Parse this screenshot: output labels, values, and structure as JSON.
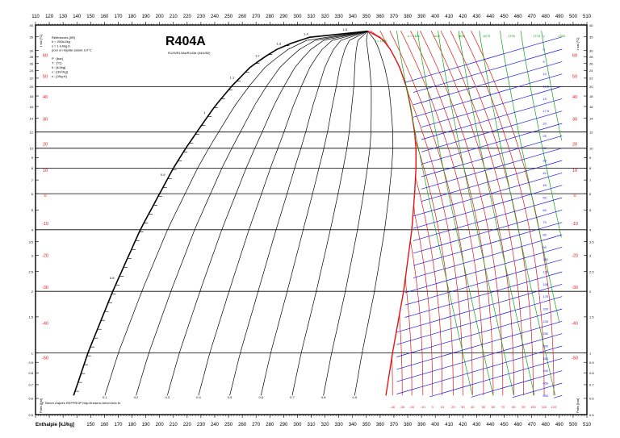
{
  "chart_data": {
    "type": "pressure-enthalpy diagram",
    "title": "R404A",
    "subtitle": "R125/R134a/R143a (44/4/52)",
    "reference_notes": [
      "Références (IIR)",
      "h = 200kJ/kg",
      "s = 1 kJ/kg.K",
      "pour un liquide saturé à 0°C"
    ],
    "legend": [
      "P : [bar]",
      "T : [°C]",
      "h : [kJ/kg]",
      "v : [dm³/kg]",
      "s : [J/kg.K]"
    ],
    "xlabel": "Enthalpie [kJ/kg]",
    "ylabel_left": "Pabs [bar]",
    "ylabel_right": "Pabs [bar]",
    "ylabel_top_left": "t sat [°C]",
    "ylabel_top_right": "t sat [°C]",
    "x_ticks": [
      110,
      120,
      130,
      140,
      150,
      160,
      170,
      180,
      190,
      200,
      210,
      220,
      230,
      240,
      250,
      260,
      270,
      280,
      290,
      300,
      310,
      320,
      330,
      340,
      350,
      360,
      370,
      380,
      390,
      400,
      410,
      420,
      430,
      440,
      450,
      460,
      470,
      480,
      490,
      500,
      510
    ],
    "xlim": [
      110,
      510
    ],
    "y_scale": "log",
    "ylim": [
      0.5,
      40
    ],
    "y_ticks": [
      40,
      35,
      30,
      28,
      26,
      24,
      22,
      20,
      18,
      16,
      14,
      12,
      10,
      9,
      8,
      7,
      6,
      5,
      4,
      3.5,
      3,
      2.5,
      2,
      1.5,
      1,
      0.9,
      0.8,
      0.7,
      0.6,
      0.5
    ],
    "isobars_bar": [
      20,
      12,
      10,
      8,
      6,
      4,
      2,
      1
    ],
    "sat_temperature_labels_c": [
      60,
      50,
      40,
      30,
      20,
      10,
      0,
      -10,
      -20,
      -30,
      -40,
      -50
    ],
    "quality_labels": [
      "0.1",
      "0.2",
      "0.3",
      "0.4",
      "0.5",
      "0.6",
      "0.7",
      "0.8",
      "0.9"
    ],
    "entropy_labels_liquid": [
      "0.8",
      "0.9",
      "1",
      "1.1",
      "1.2",
      "1.3",
      "1.4",
      "1.5"
    ],
    "isotherm_bottom_labels_c": [
      "-40",
      "-30",
      "-20",
      "-10",
      "0",
      "10",
      "20",
      "30",
      "40",
      "50",
      "60",
      "70",
      "80",
      "90",
      "100",
      "110",
      "120"
    ],
    "isentrope_top_labels": [
      "s = 1600",
      "1625",
      "1650",
      "1675",
      "1700",
      "1725",
      "1750"
    ],
    "isentrope_left_label": "s = 1550",
    "specific_volume_labels": [
      "7",
      "8",
      "9",
      "10",
      "12.5",
      "15",
      "17.5",
      "20",
      "25",
      "30",
      "35",
      "40",
      "45",
      "50",
      "60",
      "70",
      "80",
      "90",
      "100",
      "120",
      "150",
      "175",
      "200",
      "225",
      "250",
      "300",
      "350",
      "400",
      "450",
      "500"
    ],
    "credit": "F. Benet d'après REFPROP http://frederic.benet.free.fr/",
    "grid": true,
    "colors": {
      "isotherm": "#e01818",
      "isochore": "#1a1ae0",
      "isentrope": "#11a511",
      "line": "#000000"
    }
  }
}
